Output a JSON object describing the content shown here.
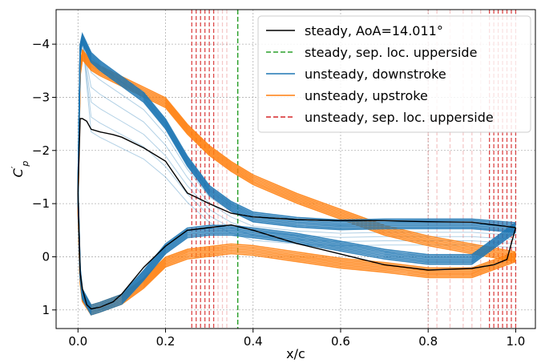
{
  "chart_data": {
    "type": "line",
    "title": "",
    "xlabel": "x/c",
    "ylabel": "C′p",
    "ylabel_main": "C",
    "ylabel_sup": "′",
    "ylabel_sub": "p",
    "xlim": [
      -0.05,
      1.045
    ],
    "ylim": [
      1.35,
      -4.65
    ],
    "y_inverted": true,
    "grid": true,
    "legend_position": "top-right",
    "x_ticks": [
      0.0,
      0.2,
      0.4,
      0.6,
      0.8,
      1.0
    ],
    "x_tick_labels": [
      "0.0",
      "0.2",
      "0.4",
      "0.6",
      "0.8",
      "1.0"
    ],
    "y_ticks": [
      -4,
      -3,
      -2,
      -1,
      0,
      1
    ],
    "y_tick_labels": [
      "−4",
      "−3",
      "−2",
      "−1",
      "0",
      "1"
    ],
    "colors": {
      "steady": "#000000",
      "sep_steady": "#2ca02c",
      "downstroke": "#1f77b4",
      "upstroke": "#ff7f0e",
      "sep_unsteady": "#d62728"
    },
    "legend": [
      {
        "label": "steady, AoA=14.011°",
        "color": "#000000",
        "style": "solid"
      },
      {
        "label": "steady, sep. loc. upperside",
        "color": "#2ca02c",
        "style": "dashed"
      },
      {
        "label": "unsteady, downstroke",
        "color": "#1f77b4",
        "style": "solid"
      },
      {
        "label": "unsteady, upstroke",
        "color": "#ff7f0e",
        "style": "solid"
      },
      {
        "label": "unsteady, sep. loc. upperside",
        "color": "#d62728",
        "style": "dashed"
      }
    ],
    "steady_separation_x": 0.365,
    "unsteady_separation_x": [
      0.26,
      0.27,
      0.28,
      0.29,
      0.3,
      0.31,
      0.32,
      0.33,
      0.34,
      0.8,
      0.82,
      0.85,
      0.88,
      0.9,
      0.92,
      0.94,
      0.95,
      0.96,
      0.97,
      0.98,
      0.99,
      1.0
    ],
    "series": [
      {
        "id": "steady-upper",
        "color": "#000000",
        "x": [
          0.0,
          0.005,
          0.01,
          0.02,
          0.03,
          0.05,
          0.08,
          0.1,
          0.15,
          0.2,
          0.25,
          0.3,
          0.35,
          0.4,
          0.5,
          0.6,
          0.7,
          0.8,
          0.9,
          0.95,
          1.0
        ],
        "y": [
          -1.2,
          -2.6,
          -2.6,
          -2.55,
          -2.4,
          -2.35,
          -2.3,
          -2.25,
          -2.05,
          -1.8,
          -1.2,
          -1.0,
          -0.82,
          -0.75,
          -0.7,
          -0.68,
          -0.68,
          -0.66,
          -0.65,
          -0.6,
          -0.55
        ]
      },
      {
        "id": "steady-lower",
        "color": "#000000",
        "x": [
          0.0,
          0.005,
          0.01,
          0.02,
          0.03,
          0.05,
          0.08,
          0.1,
          0.15,
          0.2,
          0.25,
          0.3,
          0.35,
          0.4,
          0.5,
          0.6,
          0.7,
          0.8,
          0.9,
          0.95,
          0.98,
          1.0
        ],
        "y": [
          -1.2,
          0.3,
          0.6,
          0.9,
          0.98,
          0.95,
          0.85,
          0.7,
          0.2,
          -0.2,
          -0.5,
          -0.55,
          -0.6,
          -0.5,
          -0.25,
          -0.05,
          0.15,
          0.25,
          0.22,
          0.15,
          0.05,
          -0.55
        ]
      },
      {
        "id": "upstroke-upper",
        "color": "#ff7f0e",
        "x": [
          0.0,
          0.005,
          0.01,
          0.03,
          0.05,
          0.1,
          0.15,
          0.2,
          0.25,
          0.3,
          0.35,
          0.4,
          0.5,
          0.6,
          0.7,
          0.8,
          0.9,
          1.0
        ],
        "y": [
          -1.0,
          -3.5,
          -3.8,
          -3.6,
          -3.5,
          -3.3,
          -3.1,
          -2.9,
          -2.4,
          -2.0,
          -1.7,
          -1.45,
          -1.1,
          -0.8,
          -0.5,
          -0.3,
          -0.15,
          0.0
        ]
      },
      {
        "id": "upstroke-lower",
        "color": "#ff7f0e",
        "x": [
          0.0,
          0.005,
          0.01,
          0.03,
          0.05,
          0.1,
          0.15,
          0.2,
          0.25,
          0.3,
          0.35,
          0.4,
          0.5,
          0.6,
          0.7,
          0.8,
          0.9,
          1.0
        ],
        "y": [
          -1.0,
          0.4,
          0.75,
          1.0,
          0.95,
          0.8,
          0.5,
          0.1,
          -0.05,
          -0.1,
          -0.15,
          -0.12,
          0.0,
          0.12,
          0.2,
          0.3,
          0.3,
          0.0
        ]
      },
      {
        "id": "downstroke-upper",
        "color": "#1f77b4",
        "x": [
          0.0,
          0.005,
          0.01,
          0.03,
          0.05,
          0.1,
          0.15,
          0.2,
          0.25,
          0.3,
          0.35,
          0.4,
          0.5,
          0.6,
          0.7,
          0.8,
          0.9,
          1.0
        ],
        "y": [
          -1.2,
          -3.9,
          -4.1,
          -3.75,
          -3.6,
          -3.3,
          -3.0,
          -2.5,
          -1.8,
          -1.25,
          -0.95,
          -0.75,
          -0.65,
          -0.6,
          -0.62,
          -0.62,
          -0.62,
          -0.55
        ]
      },
      {
        "id": "downstroke-lower",
        "color": "#1f77b4",
        "x": [
          0.0,
          0.005,
          0.01,
          0.03,
          0.05,
          0.1,
          0.15,
          0.2,
          0.25,
          0.3,
          0.35,
          0.4,
          0.5,
          0.6,
          0.7,
          0.8,
          0.9,
          1.0
        ],
        "y": [
          -1.2,
          0.3,
          0.7,
          1.0,
          0.95,
          0.8,
          0.35,
          -0.15,
          -0.45,
          -0.5,
          -0.5,
          -0.45,
          -0.35,
          -0.2,
          -0.05,
          0.05,
          0.05,
          -0.55
        ]
      }
    ]
  }
}
